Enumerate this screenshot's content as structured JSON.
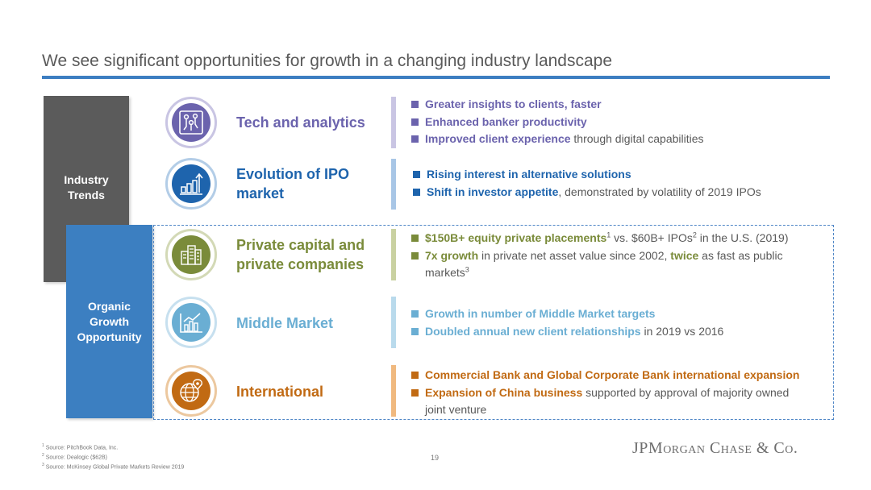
{
  "slide": {
    "title": "We see significant opportunities for growth in a changing industry landscape",
    "page_number": "19"
  },
  "sidebar": {
    "industry_trends": "Industry Trends",
    "organic_growth": "Organic Growth Opportunity"
  },
  "rows": [
    {
      "icon": "circuit-board-icon",
      "color": "#6b63ad",
      "category": "Tech and analytics",
      "bullets": [
        {
          "hl": "Greater insights to clients, faster",
          "rest": ""
        },
        {
          "hl": "Enhanced banker productivity",
          "rest": ""
        },
        {
          "hl": "Improved client experience",
          "rest": " through digital capabilities"
        }
      ]
    },
    {
      "icon": "growth-chart-icon",
      "color": "#1e64ad",
      "category_line1": "Evolution of IPO",
      "category_line2": "market",
      "bullets": [
        {
          "hl": "Rising interest in alternative solutions",
          "rest": ""
        },
        {
          "hl": "Shift in investor appetite",
          "rest": ", demonstrated by volatility of 2019 IPOs"
        }
      ]
    },
    {
      "icon": "city-buildings-icon",
      "color": "#7a8b3a",
      "category_line1": "Private capital and",
      "category_line2": "private companies",
      "bullets": [
        {
          "hl": "$150B+ equity private placements",
          "sup1": "1",
          "mid": " vs. $60B+ IPOs",
          "sup2": "2",
          "rest": " in the U.S. (2019)"
        },
        {
          "hl": "7x growth",
          "mid": " in private net asset value since 2002, ",
          "hl2": "twice",
          "rest": " as fast as public markets",
          "sup": "3"
        }
      ]
    },
    {
      "icon": "bar-chart-icon",
      "color": "#6aaed3",
      "category": "Middle Market",
      "bullets": [
        {
          "hl": "Growth in number of Middle Market targets",
          "rest": ""
        },
        {
          "hl": "Doubled annual new client relationships",
          "rest": " in 2019 vs 2016"
        }
      ]
    },
    {
      "icon": "globe-pin-icon",
      "color": "#c16a13",
      "category": "International",
      "bullets": [
        {
          "hl": "Commercial Bank and Global Corporate Bank international expansion",
          "rest": ""
        },
        {
          "hl": "Expansion of China business",
          "rest": " supported by approval of majority owned joint venture"
        }
      ]
    }
  ],
  "footnotes": [
    {
      "num": "1",
      "text": "Source: PitchBook Data, Inc."
    },
    {
      "num": "2",
      "text": "Source: Dealogic ($62B)"
    },
    {
      "num": "3",
      "text": "Source: McKinsey Global Private Markets Review 2019"
    }
  ],
  "logo": "JPMorgan Chase & Co.",
  "colors": {
    "title_rule": "#3d7ec1",
    "industry_bar": "#5b5b5b",
    "organic_bar": "#3c7fc1",
    "body_text": "#595959"
  }
}
